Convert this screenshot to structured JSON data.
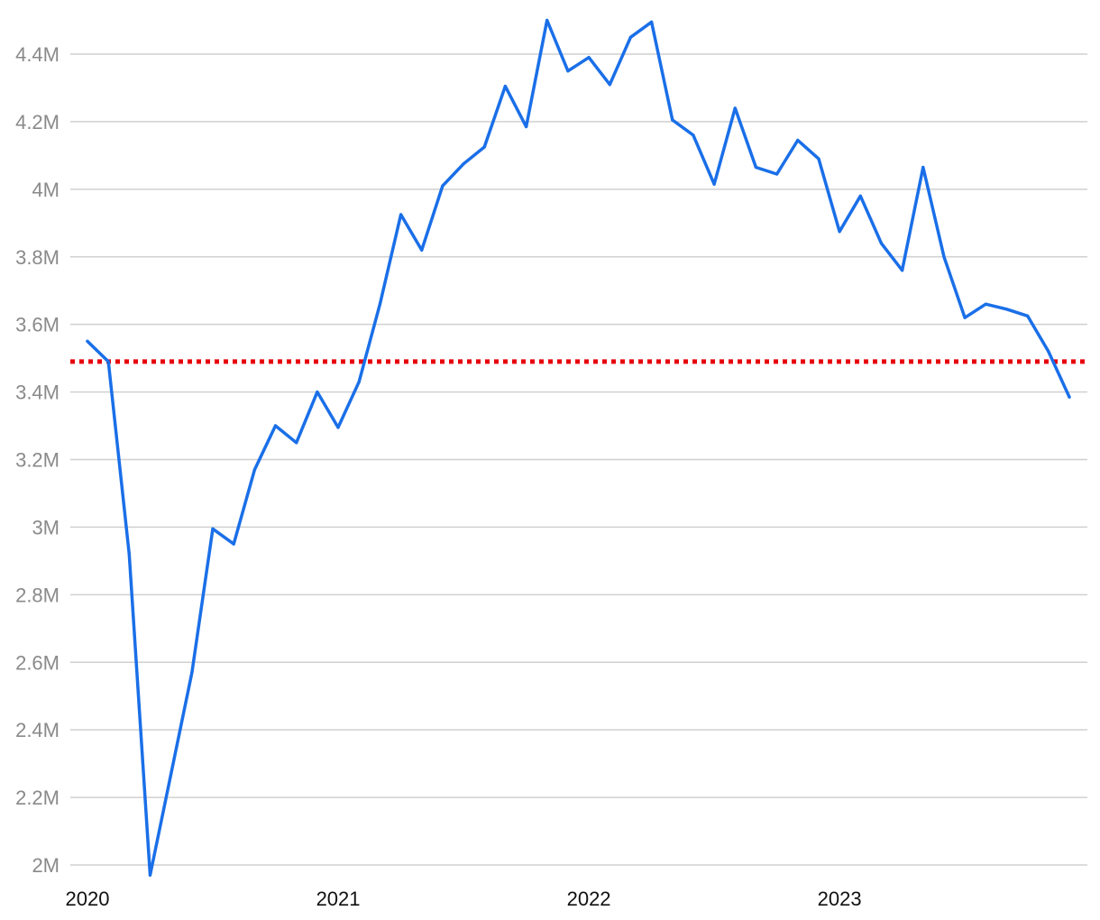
{
  "chart_data": {
    "type": "line",
    "title": "",
    "xlabel": "",
    "ylabel": "",
    "x_tick_labels": [
      "2020",
      "2021",
      "2022",
      "2023"
    ],
    "y_tick_labels": [
      "2M",
      "2.2M",
      "2.4M",
      "2.6M",
      "2.8M",
      "3M",
      "3.2M",
      "3.4M",
      "3.6M",
      "3.8M",
      "4M",
      "4.2M",
      "4.4M"
    ],
    "y_tick_values": [
      2000000,
      2200000,
      2400000,
      2600000,
      2800000,
      3000000,
      3200000,
      3400000,
      3600000,
      3800000,
      4000000,
      4200000,
      4400000
    ],
    "ylim": [
      2000000,
      4400000
    ],
    "xlim": [
      "2020-01",
      "2023-12"
    ],
    "grid": true,
    "legend": "none",
    "x": [
      "2020-01",
      "2020-02",
      "2020-03",
      "2020-04",
      "2020-05",
      "2020-06",
      "2020-07",
      "2020-08",
      "2020-09",
      "2020-10",
      "2020-11",
      "2020-12",
      "2021-01",
      "2021-02",
      "2021-03",
      "2021-04",
      "2021-05",
      "2021-06",
      "2021-07",
      "2021-08",
      "2021-09",
      "2021-10",
      "2021-11",
      "2021-12",
      "2022-01",
      "2022-02",
      "2022-03",
      "2022-04",
      "2022-05",
      "2022-06",
      "2022-07",
      "2022-08",
      "2022-09",
      "2022-10",
      "2022-11",
      "2022-12",
      "2023-01",
      "2023-02",
      "2023-03",
      "2023-04",
      "2023-05",
      "2023-06",
      "2023-07",
      "2023-08",
      "2023-09",
      "2023-10",
      "2023-11",
      "2023-12"
    ],
    "series": [
      {
        "color": "#1a6fe8",
        "values": [
          3550000,
          3490000,
          2920000,
          1970000,
          2270000,
          2570000,
          2995000,
          2950000,
          3170000,
          3300000,
          3250000,
          3400000,
          3295000,
          3430000,
          3660000,
          3925000,
          3820000,
          4010000,
          4075000,
          4125000,
          4305000,
          4185000,
          4500000,
          4350000,
          4390000,
          4310000,
          4450000,
          4495000,
          4205000,
          4160000,
          4015000,
          4240000,
          4065000,
          4045000,
          4145000,
          4090000,
          3875000,
          3980000,
          3840000,
          3760000,
          4065000,
          3800000,
          3620000,
          3660000,
          3645000,
          3625000,
          3520000,
          3385000
        ]
      }
    ],
    "reference_line": {
      "value": 3490000,
      "color": "#e8000b",
      "style": "dotted"
    }
  }
}
